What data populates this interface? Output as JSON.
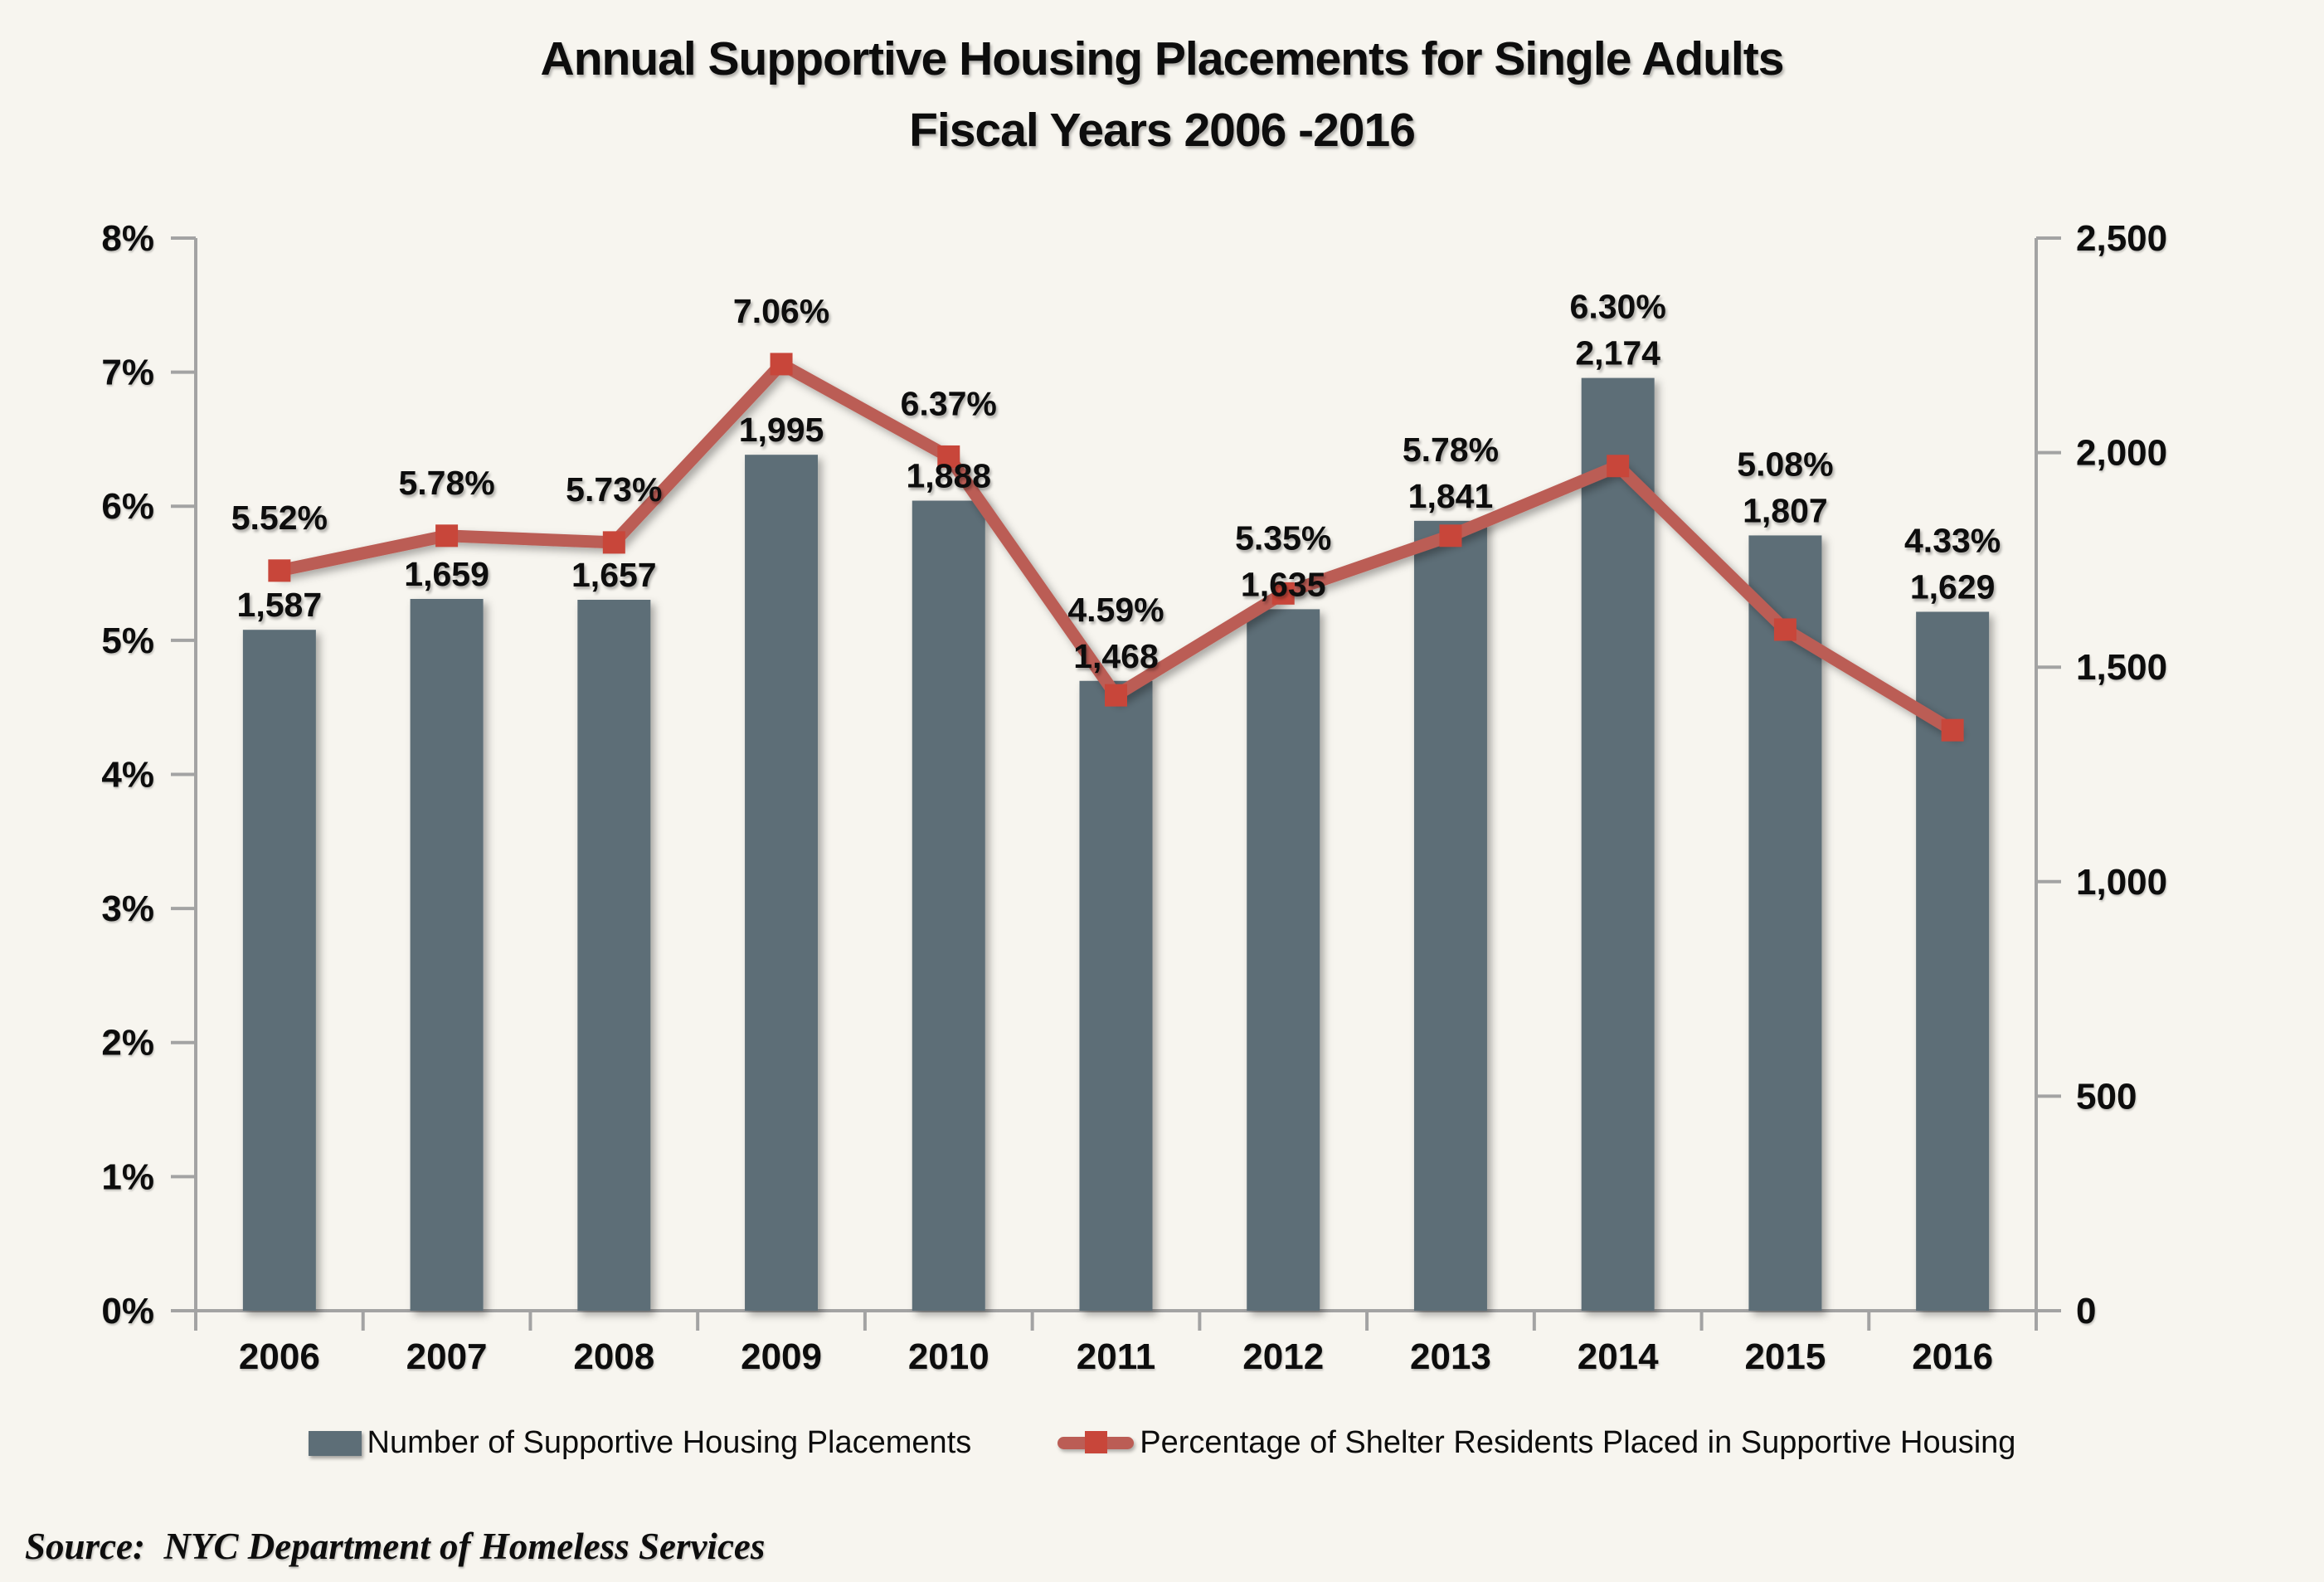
{
  "title": {
    "line1": "Annual Supportive Housing Placements for Single Adults",
    "line2": "Fiscal Years 2006 -2016"
  },
  "source": {
    "text": "Source:  NYC Department of Homeless Services"
  },
  "legend": {
    "bar_label": "Number of Supportive Housing Placements",
    "line_label": "Percentage of Shelter Residents Placed in Supportive Housing"
  },
  "colors": {
    "background": "#f7f5ef",
    "bar": "#5d6e77",
    "line": "#bb5d55",
    "marker": "#c8463a",
    "axis": "#a3a3a3",
    "text": "#0d0d0d"
  },
  "chart_data": {
    "type": "bar+line (dual y-axis combo)",
    "title": "Annual Supportive Housing Placements for Single Adults Fiscal Years 2006 -2016",
    "categories": [
      "2006",
      "2007",
      "2008",
      "2009",
      "2010",
      "2011",
      "2012",
      "2013",
      "2014",
      "2015",
      "2016"
    ],
    "series": [
      {
        "name": "Number of Supportive Housing Placements",
        "type": "bar",
        "axis": "right",
        "values": [
          1587,
          1659,
          1657,
          1995,
          1888,
          1468,
          1635,
          1841,
          2174,
          1807,
          1629
        ],
        "labels": [
          "1,587",
          "1,659",
          "1,657",
          "1,995",
          "1,888",
          "1,468",
          "1,635",
          "1,841",
          "2,174",
          "1,807",
          "1,629"
        ]
      },
      {
        "name": "Percentage of Shelter Residents Placed in Supportive Housing",
        "type": "line",
        "axis": "left",
        "values": [
          5.52,
          5.78,
          5.73,
          7.06,
          6.37,
          4.59,
          5.35,
          5.78,
          6.3,
          5.08,
          4.33
        ],
        "labels": [
          "5.52%",
          "5.78%",
          "5.73%",
          "7.06%",
          "6.37%",
          "4.59%",
          "5.35%",
          "5.78%",
          "6.30%",
          "5.08%",
          "4.33%"
        ]
      }
    ],
    "left_axis": {
      "min": 0,
      "max": 8,
      "tick_values": [
        0,
        1,
        2,
        3,
        4,
        5,
        6,
        7,
        8
      ],
      "tick_labels": [
        "0%",
        "1%",
        "2%",
        "3%",
        "4%",
        "5%",
        "6%",
        "7%",
        "8%"
      ]
    },
    "right_axis": {
      "min": 0,
      "max": 2500,
      "tick_values": [
        0,
        500,
        1000,
        1500,
        2000,
        2500
      ],
      "tick_labels": [
        "0",
        "500",
        "1,000",
        "1,500",
        "2,000",
        "2,500"
      ]
    },
    "grid": false,
    "legend_position": "bottom"
  }
}
